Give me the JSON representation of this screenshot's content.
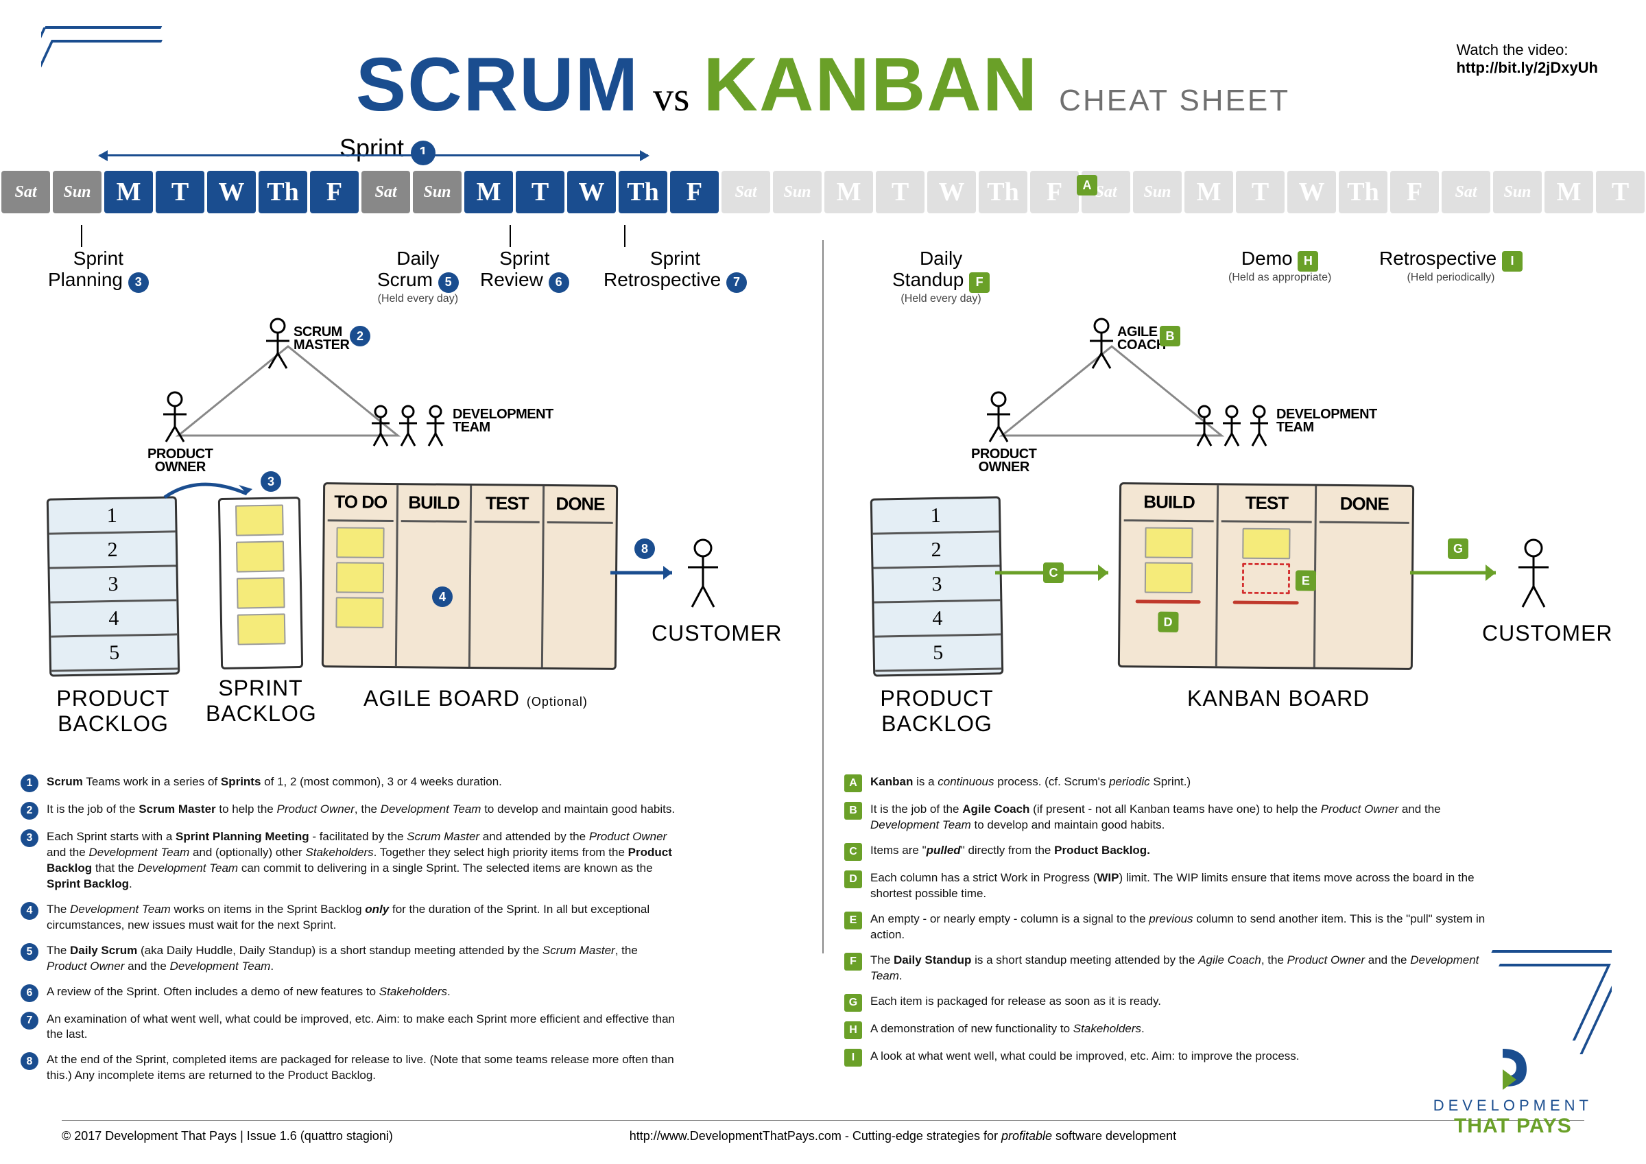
{
  "colors": {
    "scrum": "#1a4d8f",
    "kanban": "#6aa028",
    "weekend_dark": "#888888",
    "weekend_light": "#e0e0e0",
    "board_bg": "#f3e6d3",
    "backlog_bg": "#e4eef5",
    "sticky": "#f5eb7a",
    "wip": "#c0392b"
  },
  "title": {
    "scrum": "SCRUM",
    "vs": "vs",
    "kanban": "KANBAN",
    "cheat": "CHEAT SHEET"
  },
  "video": {
    "label": "Watch the video:",
    "url": "http://bit.ly/2jDxyUh"
  },
  "sprint_label": "Sprint",
  "calendar": {
    "days": [
      "Sat",
      "Sun",
      "M",
      "T",
      "W",
      "Th",
      "F",
      "Sat",
      "Sun",
      "M",
      "T",
      "W",
      "Th",
      "F",
      "Sat",
      "Sun",
      "M",
      "T",
      "W",
      "Th",
      "F",
      "Sat",
      "Sun",
      "M",
      "T",
      "W",
      "Th",
      "F",
      "Sat",
      "Sun",
      "M",
      "T"
    ],
    "active_ranges": [
      [
        2,
        6
      ],
      [
        9,
        13
      ]
    ]
  },
  "scrum": {
    "events": {
      "planning": "Sprint\nPlanning",
      "daily": "Daily\nScrum",
      "daily_sub": "(Held every day)",
      "review": "Sprint\nReview",
      "retro": "Sprint\nRetrospective"
    },
    "roles": {
      "master": "SCRUM\nMASTER",
      "owner": "PRODUCT\nOWNER",
      "team": "DEVELOPMENT\nTEAM"
    },
    "backlog_items": [
      "1",
      "2",
      "3",
      "4",
      "5"
    ],
    "labels": {
      "product_backlog": "PRODUCT\nBACKLOG",
      "sprint_backlog": "SPRINT\nBACKLOG",
      "agile_board": "AGILE BOARD",
      "agile_board_opt": "(Optional)",
      "customer": "CUSTOMER"
    },
    "board_cols": [
      "TO DO",
      "BUILD",
      "TEST",
      "DONE"
    ],
    "notes": [
      {
        "n": "1",
        "html": "<b>Scrum</b> Teams work in a series of <b>Sprints</b> of 1, 2 (most common), 3 or 4 weeks duration."
      },
      {
        "n": "2",
        "html": "It is the job of the <b>Scrum Master</b> to help the <i>Product Owner</i>, the <i>Development Team</i> to develop and maintain good habits."
      },
      {
        "n": "3",
        "html": "Each Sprint starts with a <b>Sprint Planning Meeting</b> - facilitated by the <i>Scrum Master</i> and attended by the <i>Product Owner</i> and the <i>Development Team</i> and (optionally) other <i>Stakeholders</i>. Together they select high priority items from the <b>Product Backlog</b> that the <i>Development Team</i> can commit to delivering in a single Sprint. The selected items are known as the <b>Sprint Backlog</b>."
      },
      {
        "n": "4",
        "html": "The <i>Development Team</i> works on items in the Sprint Backlog <b><i>only</i></b> for the duration of the Sprint. In all but exceptional circumstances, new issues must wait for the next Sprint."
      },
      {
        "n": "5",
        "html": "The <b>Daily Scrum</b> (aka Daily Huddle, Daily Standup) is a short standup meeting attended by the <i>Scrum Master</i>, the <i>Product Owner</i> and the <i>Development Team</i>."
      },
      {
        "n": "6",
        "html": "A review of the Sprint. Often includes a demo of new features to <i>Stakeholders</i>."
      },
      {
        "n": "7",
        "html": "An examination of what went well, what could be improved, etc. Aim: to make each Sprint more efficient and effective than the last."
      },
      {
        "n": "8",
        "html": "At the end of the Sprint, completed items are packaged for release to live. (Note that some teams release more often than this.) Any incomplete items are returned to the Product Backlog."
      }
    ]
  },
  "kanban": {
    "events": {
      "standup": "Daily\nStandup",
      "standup_sub": "(Held every day)",
      "demo": "Demo",
      "demo_sub": "(Held as appropriate)",
      "retro": "Retrospective",
      "retro_sub": "(Held periodically)"
    },
    "roles": {
      "coach": "AGILE\nCOACH",
      "owner": "PRODUCT\nOWNER",
      "team": "DEVELOPMENT\nTEAM"
    },
    "backlog_items": [
      "1",
      "2",
      "3",
      "4",
      "5"
    ],
    "labels": {
      "product_backlog": "PRODUCT\nBACKLOG",
      "kanban_board": "KANBAN BOARD",
      "customer": "CUSTOMER"
    },
    "board_cols": [
      "BUILD",
      "TEST",
      "DONE"
    ],
    "notes": [
      {
        "n": "A",
        "html": "<b>Kanban</b> is a <i>continuous</i> process. (cf. Scrum's <i>periodic</i> Sprint.)"
      },
      {
        "n": "B",
        "html": "It is the job of the <b>Agile Coach</b> (if present - not all Kanban teams have one) to help the <i>Product Owner</i> and the <i>Development Team</i> to develop and maintain good habits."
      },
      {
        "n": "C",
        "html": "Items are \"<b><i>pulled</i></b>\" directly from the <b>Product Backlog.</b>"
      },
      {
        "n": "D",
        "html": "Each column has a strict Work in Progress (<b>WIP</b>) limit. The WIP limits ensure that items move across the board in the shortest possible time."
      },
      {
        "n": "E",
        "html": "An empty - or nearly empty - column is a signal to the <i>previous</i> column to send another item. This is the \"pull\" system in action."
      },
      {
        "n": "F",
        "html": "The <b>Daily Standup</b> is a short standup meeting attended by the <i>Agile Coach</i>, the <i>Product Owner</i> and the <i>Development Team</i>."
      },
      {
        "n": "G",
        "html": "Each item is packaged for release as soon as it is ready."
      },
      {
        "n": "H",
        "html": "A demonstration of new functionality to <i>Stakeholders</i>."
      },
      {
        "n": "I",
        "html": "A look at what went well, what could be improved, etc. Aim: to improve the process."
      }
    ]
  },
  "footer": {
    "left": "© 2017 Development That Pays | Issue 1.6 (quattro stagioni)",
    "center": "http://www.DevelopmentThatPays.com  - Cutting-edge strategies for profitable software development"
  },
  "logo": {
    "line1": "DEVELOPMENT",
    "line2": "THAT PAYS"
  }
}
